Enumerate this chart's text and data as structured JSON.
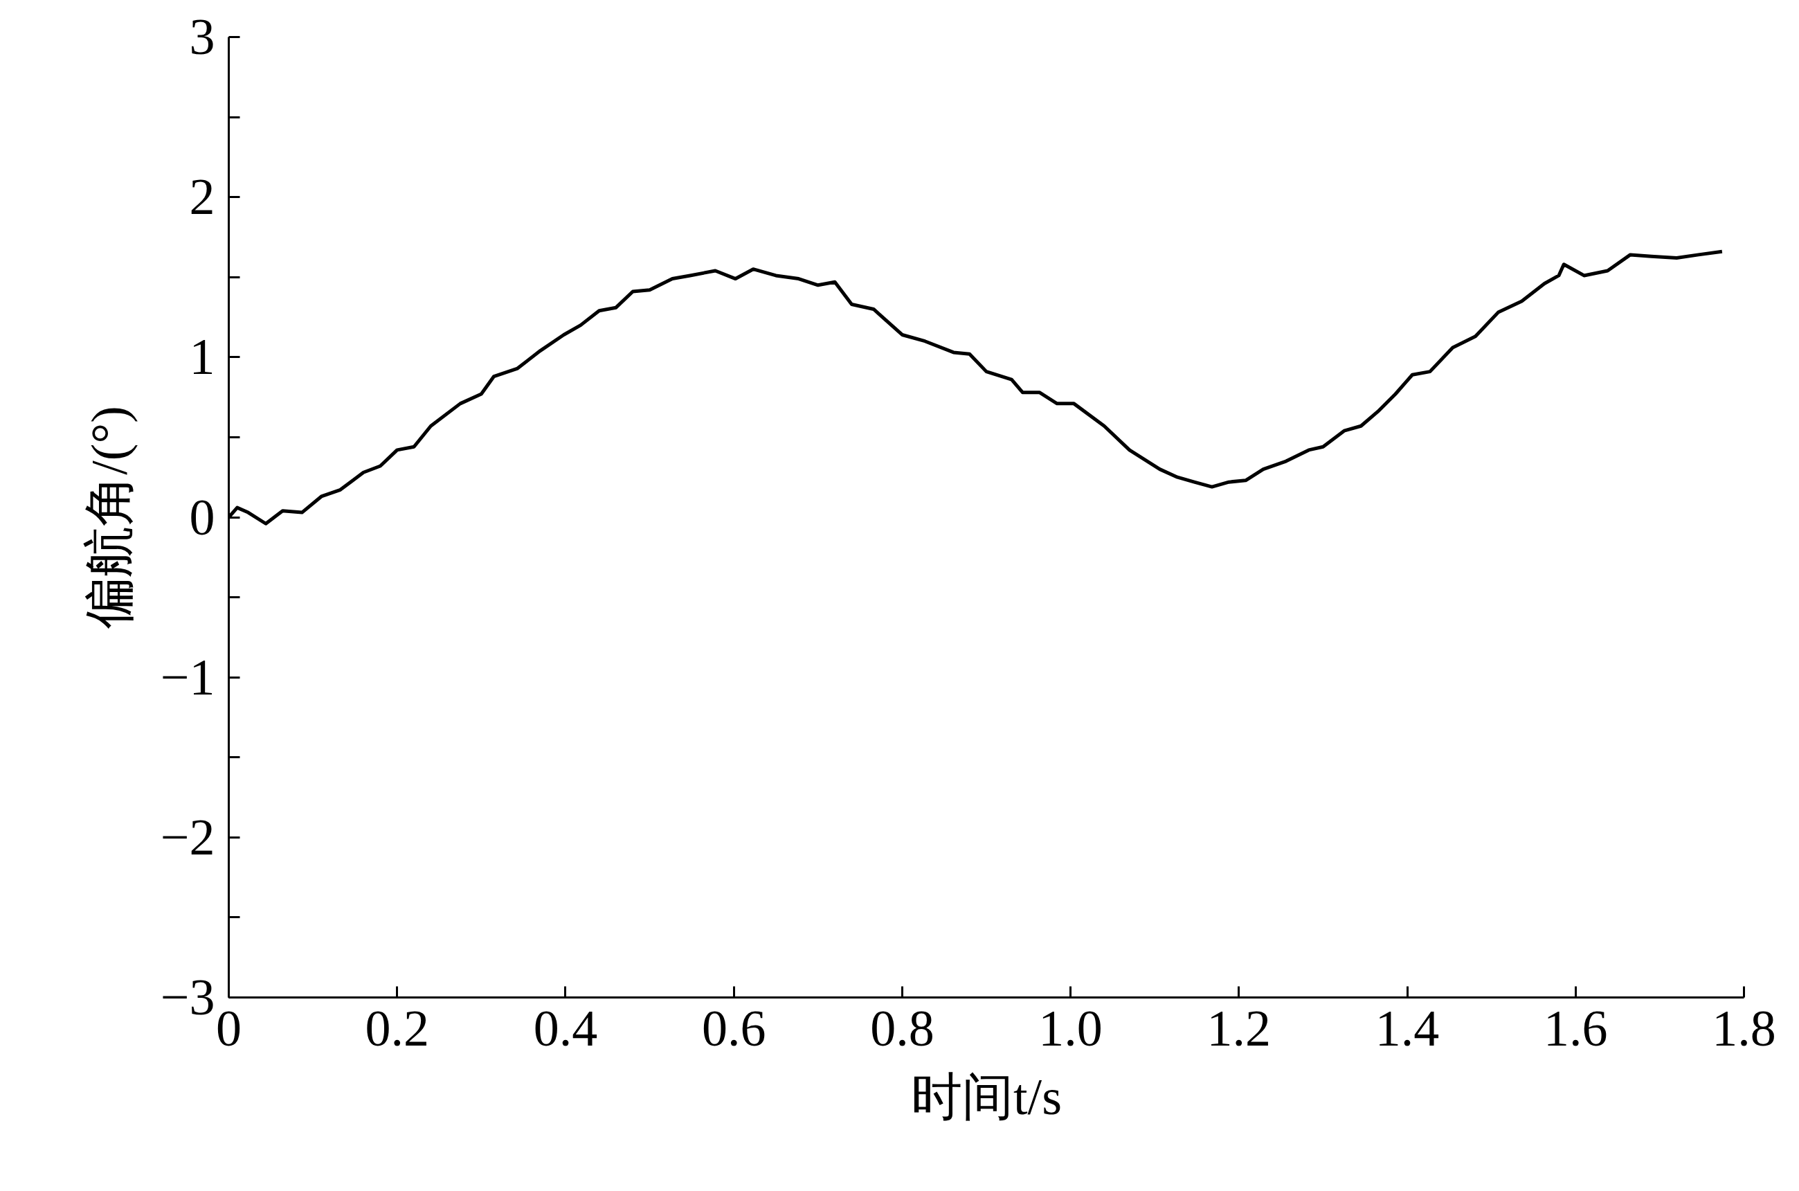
{
  "chart_data": {
    "type": "line",
    "xlabel": "时间t/s",
    "ylabel": "偏航角/(°)",
    "xlim": [
      0,
      1.8
    ],
    "ylim": [
      -3,
      3
    ],
    "xticks": [
      0,
      0.2,
      0.4,
      0.6,
      0.8,
      {
        "value": 1.0,
        "label": "1.0"
      },
      1.2,
      1.4,
      1.6,
      1.8
    ],
    "yticks": [
      {
        "value": -3,
        "label": "−3"
      },
      {
        "value": -2.5,
        "label": null
      },
      {
        "value": -2,
        "label": "−2"
      },
      {
        "value": -1.5,
        "label": null
      },
      {
        "value": -1,
        "label": "−1"
      },
      {
        "value": -0.5,
        "label": null
      },
      0,
      {
        "value": 0.5,
        "label": null
      },
      1,
      {
        "value": 1.5,
        "label": null
      },
      2,
      {
        "value": 2.5,
        "label": null
      },
      3
    ],
    "grid": false,
    "marker": "none",
    "line_style": "solid",
    "x": [
      0,
      0.01,
      0.023,
      0.044,
      0.064,
      0.087,
      0.11,
      0.132,
      0.16,
      0.18,
      0.2,
      0.22,
      0.24,
      0.275,
      0.3,
      0.315,
      0.343,
      0.37,
      0.398,
      0.418,
      0.44,
      0.46,
      0.48,
      0.5,
      0.527,
      0.548,
      0.578,
      0.602,
      0.623,
      0.65,
      0.677,
      0.7,
      0.72,
      0.74,
      0.766,
      0.8,
      0.827,
      0.861,
      0.88,
      0.9,
      0.93,
      0.943,
      0.963,
      0.984,
      1.004,
      1.04,
      1.07,
      1.106,
      1.127,
      1.147,
      1.168,
      1.188,
      1.208,
      1.229,
      1.256,
      1.283,
      1.3,
      1.325,
      1.345,
      1.365,
      1.386,
      1.406,
      1.427,
      1.454,
      1.481,
      1.508,
      1.536,
      1.563,
      1.58,
      1.586,
      1.61,
      1.638,
      1.665,
      1.69,
      1.72,
      1.746,
      1.774
    ],
    "series": [
      {
        "color": "#000000",
        "values": [
          0,
          0.06,
          0.03,
          -0.04,
          0.04,
          0.03,
          0.13,
          0.17,
          0.28,
          0.32,
          0.42,
          0.44,
          0.57,
          0.71,
          0.77,
          0.88,
          0.93,
          1.04,
          1.14,
          1.2,
          1.29,
          1.31,
          1.41,
          1.42,
          1.49,
          1.51,
          1.54,
          1.49,
          1.55,
          1.51,
          1.49,
          1.45,
          1.47,
          1.33,
          1.3,
          1.14,
          1.1,
          1.03,
          1.02,
          0.91,
          0.86,
          0.78,
          0.78,
          0.71,
          0.71,
          0.57,
          0.42,
          0.3,
          0.25,
          0.22,
          0.19,
          0.22,
          0.23,
          0.3,
          0.35,
          0.42,
          0.44,
          0.54,
          0.57,
          0.66,
          0.77,
          0.89,
          0.91,
          1.06,
          1.13,
          1.28,
          1.35,
          1.46,
          1.51,
          1.58,
          1.51,
          1.54,
          1.64,
          1.63,
          1.62,
          1.64,
          1.66
        ]
      }
    ]
  }
}
